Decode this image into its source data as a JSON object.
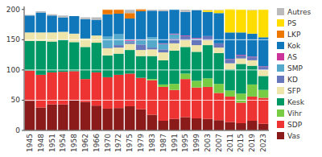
{
  "chart_data": {
    "type": "bar",
    "stacked": true,
    "grid": true,
    "legend": "right",
    "categories": [
      "1945",
      "1948",
      "1951",
      "1954",
      "1958",
      "1962",
      "1966",
      "1970",
      "1972",
      "1975",
      "1979",
      "1983",
      "1987",
      "1991",
      "1995",
      "1999",
      "2003",
      "2007",
      "2011",
      "2015",
      "2019",
      "2023"
    ],
    "series": [
      {
        "name": "Vas",
        "color": "#8B1A1A",
        "values": [
          49,
          38,
          43,
          43,
          50,
          47,
          41,
          36,
          37,
          40,
          35,
          26,
          16,
          19,
          22,
          20,
          19,
          17,
          14,
          12,
          16,
          11
        ]
      },
      {
        "name": "SDP",
        "color": "#EE3333",
        "values": [
          50,
          54,
          53,
          54,
          48,
          38,
          55,
          52,
          55,
          54,
          52,
          57,
          56,
          48,
          63,
          51,
          53,
          45,
          42,
          34,
          40,
          43
        ]
      },
      {
        "name": "Vihr",
        "color": "#77CC44",
        "values": [
          0,
          0,
          0,
          0,
          0,
          0,
          0,
          0,
          0,
          0,
          0,
          2,
          4,
          10,
          9,
          11,
          14,
          15,
          10,
          15,
          20,
          13
        ]
      },
      {
        "name": "Kesk",
        "color": "#009966",
        "values": [
          49,
          56,
          51,
          53,
          48,
          53,
          49,
          36,
          35,
          39,
          36,
          38,
          40,
          55,
          44,
          48,
          55,
          51,
          35,
          49,
          31,
          23
        ]
      },
      {
        "name": "SFP",
        "color": "#EEE5AA",
        "values": [
          14,
          14,
          15,
          13,
          14,
          14,
          12,
          12,
          10,
          10,
          10,
          11,
          13,
          12,
          11,
          11,
          8,
          9,
          10,
          9,
          9,
          10
        ]
      },
      {
        "name": "KD",
        "color": "#6677BB",
        "values": [
          0,
          0,
          0,
          0,
          0,
          0,
          0,
          1,
          4,
          3,
          9,
          3,
          5,
          8,
          7,
          10,
          7,
          7,
          6,
          5,
          5,
          5
        ]
      },
      {
        "name": "SMP",
        "color": "#55AACC",
        "values": [
          0,
          0,
          0,
          0,
          0,
          0,
          0,
          18,
          18,
          2,
          7,
          17,
          9,
          7,
          0,
          1,
          0,
          0,
          0,
          0,
          0,
          0
        ]
      },
      {
        "name": "AS",
        "color": "#CC3399",
        "values": [
          0,
          0,
          0,
          0,
          0,
          0,
          0,
          0,
          0,
          2,
          1,
          0,
          1,
          1,
          1,
          1,
          0,
          0,
          1,
          1,
          1,
          1
        ]
      },
      {
        "name": "Kok",
        "color": "#1177BB",
        "values": [
          28,
          33,
          28,
          24,
          29,
          32,
          26,
          37,
          34,
          35,
          47,
          44,
          53,
          40,
          39,
          46,
          40,
          50,
          44,
          37,
          38,
          48
        ]
      },
      {
        "name": "LKP",
        "color": "#EE7700",
        "values": [
          0,
          0,
          0,
          0,
          0,
          0,
          0,
          8,
          7,
          9,
          4,
          0,
          0,
          0,
          0,
          0,
          0,
          0,
          0,
          0,
          0,
          0
        ]
      },
      {
        "name": "PS",
        "color": "#FFDD00",
        "values": [
          0,
          0,
          0,
          0,
          0,
          0,
          0,
          0,
          0,
          0,
          0,
          0,
          0,
          0,
          0,
          0,
          3,
          5,
          39,
          38,
          39,
          46
        ]
      },
      {
        "name": "Autres",
        "color": "#BBBBBB",
        "values": [
          1,
          2,
          2,
          3,
          0,
          3,
          4,
          0,
          0,
          6,
          0,
          2,
          3,
          0,
          4,
          1,
          1,
          1,
          0,
          0,
          1,
          0
        ]
      }
    ],
    "ylim": [
      0,
      205
    ],
    "yticks": [
      0,
      50,
      100,
      150,
      200
    ]
  }
}
